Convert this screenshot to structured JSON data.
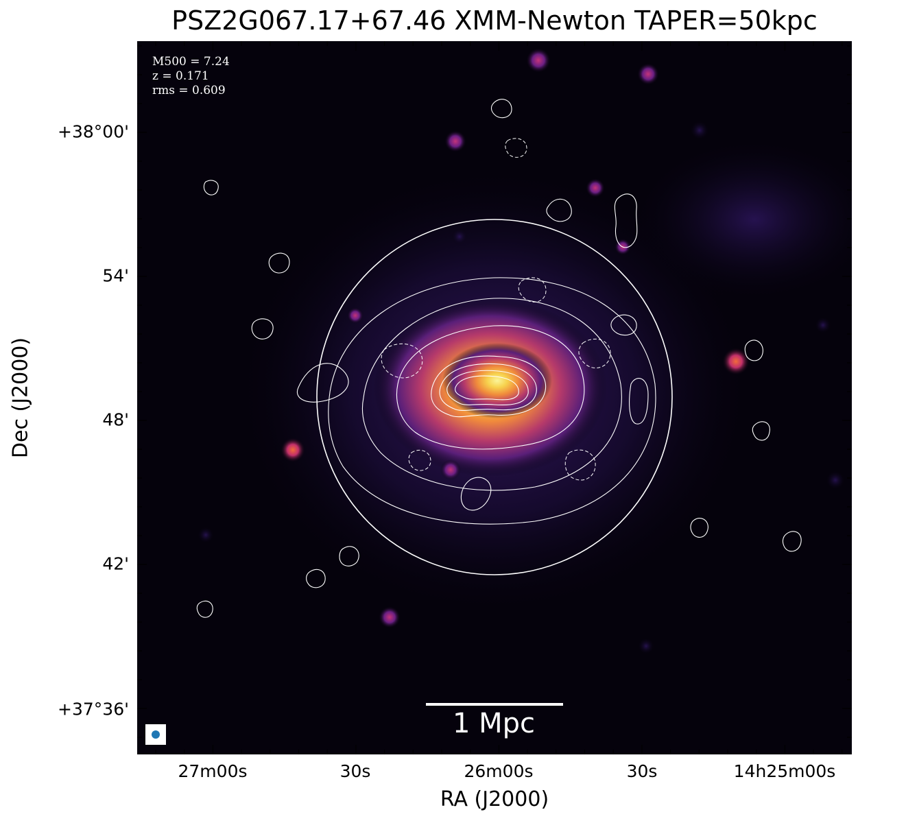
{
  "figure": {
    "title": "PSZ2G067.17+67.46 XMM-Newton TAPER=50kpc",
    "xlabel": "RA (J2000)",
    "ylabel": "Dec (J2000)"
  },
  "annotations": {
    "m500": "M500 = 7.24",
    "z": "z = 0.171",
    "rms": "rms = 0.609"
  },
  "scalebar": {
    "label": "1 Mpc"
  },
  "axes": {
    "x_ticks": [
      "27m00s",
      "30s",
      "26m00s",
      "30s",
      "14h25m00s"
    ],
    "y_ticks": [
      "+38°00'",
      "54'",
      "48'",
      "42'",
      "+37°36'"
    ]
  },
  "colors": {
    "background": "#05020c",
    "cluster_core": "#f8f27a",
    "cluster_mid": "#f08a3c",
    "cluster_outer": "#8a2d8f",
    "contour": "#ffffff",
    "beam": "#1f77b4"
  },
  "image": {
    "colormap": "inferno-like",
    "r500_circle": true,
    "contour_levels": "white solid and dashed contours"
  }
}
